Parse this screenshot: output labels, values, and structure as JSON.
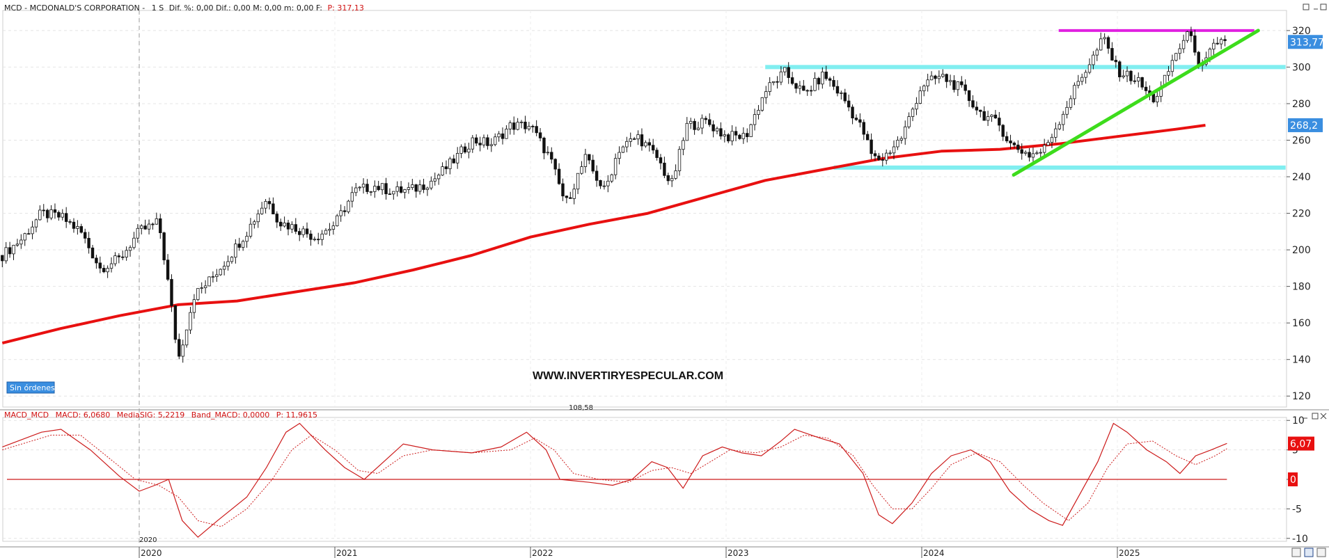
{
  "header": {
    "title": "MCD - MCDONALD'S CORPORATION -",
    "timeframe": "1 S",
    "stats": "Dif. %: 0,00  Dif.: 0,00  M: 0,00  m: 0,00  F:",
    "last_price_label": "P: 317,13"
  },
  "macd_header": {
    "label": "MACD_MCD",
    "macd": "MACD: 6,0680",
    "signal": "MediaSIG: 5,2219",
    "band": "Band_MACD: 0,0000",
    "p": "P: 11,9615"
  },
  "badges": {
    "price": "313,77",
    "ma": "268,2",
    "macd": "6,07",
    "zero": "0"
  },
  "orders_button": "Sin órdenes",
  "watermark": "WWW.INVERTIRYESPECULAR.COM",
  "low_label": "108,58",
  "x_inner_label": "2020",
  "colors": {
    "ma": "#e81010",
    "resistance": "#e020e0",
    "support": "#80eef0",
    "trend": "#3ddc1c",
    "macd": "#cc1a1a",
    "badge_blue": "#3a8ee0",
    "badge_red": "#e81010"
  },
  "chart_data": {
    "type": "candlestick",
    "title": "MCD - MCDONALD'S CORPORATION",
    "y_ticks": [
      120,
      140,
      160,
      180,
      200,
      220,
      240,
      260,
      280,
      300,
      320
    ],
    "ylim": [
      114,
      331
    ],
    "x_ticks": [
      "2020",
      "2021",
      "2022",
      "2023",
      "2024",
      "2025"
    ],
    "price_path": [
      [
        2019.3,
        197
      ],
      [
        2019.4,
        206
      ],
      [
        2019.5,
        220
      ],
      [
        2019.6,
        218
      ],
      [
        2019.7,
        210
      ],
      [
        2019.8,
        190
      ],
      [
        2019.9,
        195
      ],
      [
        2020.0,
        210
      ],
      [
        2020.1,
        215
      ],
      [
        2020.15,
        180
      ],
      [
        2020.2,
        140
      ],
      [
        2020.28,
        175
      ],
      [
        2020.35,
        182
      ],
      [
        2020.45,
        195
      ],
      [
        2020.55,
        210
      ],
      [
        2020.65,
        228
      ],
      [
        2020.72,
        215
      ],
      [
        2020.8,
        212
      ],
      [
        2020.9,
        207
      ],
      [
        2021.0,
        214
      ],
      [
        2021.1,
        232
      ],
      [
        2021.2,
        235
      ],
      [
        2021.3,
        232
      ],
      [
        2021.4,
        233
      ],
      [
        2021.5,
        238
      ],
      [
        2021.6,
        248
      ],
      [
        2021.7,
        260
      ],
      [
        2021.8,
        258
      ],
      [
        2021.9,
        268
      ],
      [
        2022.0,
        268
      ],
      [
        2022.1,
        250
      ],
      [
        2022.18,
        225
      ],
      [
        2022.28,
        250
      ],
      [
        2022.38,
        232
      ],
      [
        2022.45,
        255
      ],
      [
        2022.55,
        262
      ],
      [
        2022.65,
        250
      ],
      [
        2022.72,
        235
      ],
      [
        2022.8,
        268
      ],
      [
        2022.9,
        270
      ],
      [
        2023.0,
        262
      ],
      [
        2023.1,
        262
      ],
      [
        2023.2,
        287
      ],
      [
        2023.3,
        297
      ],
      [
        2023.4,
        285
      ],
      [
        2023.5,
        296
      ],
      [
        2023.6,
        283
      ],
      [
        2023.7,
        265
      ],
      [
        2023.75,
        250
      ],
      [
        2023.8,
        250
      ],
      [
        2023.9,
        262
      ],
      [
        2024.0,
        290
      ],
      [
        2024.1,
        295
      ],
      [
        2024.2,
        288
      ],
      [
        2024.3,
        275
      ],
      [
        2024.4,
        268
      ],
      [
        2024.45,
        258
      ],
      [
        2024.55,
        252
      ],
      [
        2024.62,
        254
      ],
      [
        2024.7,
        270
      ],
      [
        2024.8,
        292
      ],
      [
        2024.88,
        306
      ],
      [
        2024.93,
        316
      ],
      [
        2025.0,
        298
      ],
      [
        2025.1,
        293
      ],
      [
        2025.18,
        282
      ],
      [
        2025.22,
        287
      ],
      [
        2025.3,
        308
      ],
      [
        2025.38,
        320
      ],
      [
        2025.42,
        296
      ],
      [
        2025.5,
        313
      ],
      [
        2025.56,
        316
      ]
    ],
    "ma_line": [
      [
        2019.3,
        149
      ],
      [
        2019.6,
        157
      ],
      [
        2019.9,
        164
      ],
      [
        2020.2,
        170
      ],
      [
        2020.5,
        172
      ],
      [
        2020.8,
        177
      ],
      [
        2021.1,
        182
      ],
      [
        2021.4,
        189
      ],
      [
        2021.7,
        197
      ],
      [
        2022.0,
        207
      ],
      [
        2022.3,
        214
      ],
      [
        2022.6,
        220
      ],
      [
        2022.9,
        229
      ],
      [
        2023.2,
        238
      ],
      [
        2023.5,
        244
      ],
      [
        2023.8,
        250
      ],
      [
        2024.1,
        254
      ],
      [
        2024.4,
        255
      ],
      [
        2024.7,
        258
      ],
      [
        2025.0,
        262
      ],
      [
        2025.3,
        266
      ],
      [
        2025.45,
        268.2
      ]
    ],
    "resistance": {
      "y": 320,
      "x": [
        2024.7,
        2025.7
      ]
    },
    "supports": [
      {
        "y": 300,
        "x": [
          2023.2,
          2025.86
        ]
      },
      {
        "y": 245,
        "x": [
          2023.55,
          2025.86
        ]
      }
    ],
    "trendline": {
      "from": [
        2024.47,
        241
      ],
      "to": [
        2025.72,
        320
      ]
    },
    "macd": {
      "y_ticks": [
        -10,
        -5,
        0,
        5,
        10
      ],
      "ylim": [
        -10.5,
        10.5
      ],
      "macd_line": [
        [
          2019.3,
          5.5
        ],
        [
          2019.5,
          8.0
        ],
        [
          2019.6,
          8.5
        ],
        [
          2019.75,
          5
        ],
        [
          2019.9,
          0.5
        ],
        [
          2020.0,
          -2
        ],
        [
          2020.08,
          -1
        ],
        [
          2020.15,
          0
        ],
        [
          2020.22,
          -7
        ],
        [
          2020.3,
          -9.8
        ],
        [
          2020.4,
          -7
        ],
        [
          2020.55,
          -3
        ],
        [
          2020.65,
          2
        ],
        [
          2020.75,
          8
        ],
        [
          2020.82,
          9.5
        ],
        [
          2020.95,
          5
        ],
        [
          2021.05,
          2
        ],
        [
          2021.15,
          0
        ],
        [
          2021.25,
          3
        ],
        [
          2021.35,
          6
        ],
        [
          2021.5,
          5
        ],
        [
          2021.7,
          4.5
        ],
        [
          2021.85,
          5.5
        ],
        [
          2021.98,
          8
        ],
        [
          2022.08,
          5
        ],
        [
          2022.15,
          0
        ],
        [
          2022.3,
          -0.5
        ],
        [
          2022.42,
          -1
        ],
        [
          2022.52,
          0
        ],
        [
          2022.62,
          3
        ],
        [
          2022.7,
          2
        ],
        [
          2022.78,
          -1.5
        ],
        [
          2022.88,
          4
        ],
        [
          2022.98,
          5.5
        ],
        [
          2023.08,
          4.5
        ],
        [
          2023.18,
          4
        ],
        [
          2023.28,
          6.5
        ],
        [
          2023.35,
          8.5
        ],
        [
          2023.48,
          7
        ],
        [
          2023.58,
          6
        ],
        [
          2023.7,
          1
        ],
        [
          2023.78,
          -6
        ],
        [
          2023.85,
          -7.5
        ],
        [
          2023.95,
          -4
        ],
        [
          2024.05,
          1
        ],
        [
          2024.15,
          4
        ],
        [
          2024.25,
          5
        ],
        [
          2024.35,
          3
        ],
        [
          2024.45,
          -2
        ],
        [
          2024.55,
          -5
        ],
        [
          2024.65,
          -7
        ],
        [
          2024.72,
          -7.8
        ],
        [
          2024.8,
          -3
        ],
        [
          2024.9,
          3
        ],
        [
          2024.98,
          9.5
        ],
        [
          2025.05,
          8
        ],
        [
          2025.15,
          5
        ],
        [
          2025.25,
          3
        ],
        [
          2025.32,
          1
        ],
        [
          2025.4,
          4
        ],
        [
          2025.48,
          5
        ],
        [
          2025.56,
          6.1
        ]
      ],
      "signal_line": [
        [
          2019.3,
          5
        ],
        [
          2019.55,
          7.5
        ],
        [
          2019.7,
          7.5
        ],
        [
          2019.85,
          3.5
        ],
        [
          2019.98,
          0
        ],
        [
          2020.1,
          -1
        ],
        [
          2020.2,
          -3
        ],
        [
          2020.3,
          -7
        ],
        [
          2020.42,
          -8
        ],
        [
          2020.55,
          -5
        ],
        [
          2020.68,
          0
        ],
        [
          2020.78,
          5
        ],
        [
          2020.88,
          7.5
        ],
        [
          2021.0,
          5
        ],
        [
          2021.12,
          1.5
        ],
        [
          2021.22,
          1
        ],
        [
          2021.35,
          4
        ],
        [
          2021.5,
          5
        ],
        [
          2021.7,
          4.5
        ],
        [
          2021.9,
          5
        ],
        [
          2022.02,
          7
        ],
        [
          2022.12,
          5
        ],
        [
          2022.22,
          1
        ],
        [
          2022.35,
          0
        ],
        [
          2022.5,
          -0.5
        ],
        [
          2022.62,
          1.5
        ],
        [
          2022.72,
          2
        ],
        [
          2022.82,
          1
        ],
        [
          2022.92,
          3
        ],
        [
          2023.02,
          5
        ],
        [
          2023.15,
          4.5
        ],
        [
          2023.28,
          5.5
        ],
        [
          2023.4,
          7.5
        ],
        [
          2023.52,
          7
        ],
        [
          2023.65,
          4
        ],
        [
          2023.75,
          -1
        ],
        [
          2023.85,
          -5
        ],
        [
          2023.95,
          -5
        ],
        [
          2024.05,
          -1.5
        ],
        [
          2024.15,
          2.5
        ],
        [
          2024.28,
          4.5
        ],
        [
          2024.4,
          3
        ],
        [
          2024.52,
          -1
        ],
        [
          2024.62,
          -4
        ],
        [
          2024.75,
          -7
        ],
        [
          2024.85,
          -4
        ],
        [
          2024.95,
          2
        ],
        [
          2025.05,
          6
        ],
        [
          2025.18,
          6.5
        ],
        [
          2025.3,
          4
        ],
        [
          2025.4,
          2.5
        ],
        [
          2025.5,
          4
        ],
        [
          2025.56,
          5.2
        ]
      ]
    }
  }
}
